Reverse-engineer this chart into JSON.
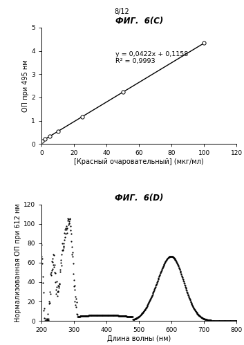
{
  "page_label": "8/12",
  "top_chart": {
    "title": "ФИГ.  6(С)",
    "xlabel": "[Красный очаровательный] (мкг/мл)",
    "ylabel": "ОП при 495 нм",
    "equation": "y = 0,0422x + 0,1158",
    "r2": "R² = 0,9993",
    "xlim": [
      0,
      120
    ],
    "ylim": [
      0,
      5
    ],
    "xticks": [
      0,
      20,
      40,
      60,
      80,
      100,
      120
    ],
    "yticks": [
      0,
      1,
      2,
      3,
      4,
      5
    ],
    "scatter_x": [
      0.5,
      2,
      5,
      10,
      25,
      50,
      100
    ],
    "scatter_y": [
      0.137,
      0.205,
      0.328,
      0.538,
      1.172,
      2.227,
      4.338
    ],
    "slope": 0.0422,
    "intercept": 0.1158
  },
  "bottom_chart": {
    "title": "ФИГ.  6(D)",
    "xlabel": "Длина волны (нм)",
    "ylabel": "Нормализованная ОП при 612 нм",
    "xlim": [
      200,
      800
    ],
    "ylim": [
      0,
      120
    ],
    "xticks": [
      200,
      300,
      400,
      500,
      600,
      700,
      800
    ],
    "yticks": [
      0,
      20,
      40,
      60,
      80,
      100,
      120
    ]
  },
  "background_color": "#ffffff",
  "text_color": "#000000"
}
